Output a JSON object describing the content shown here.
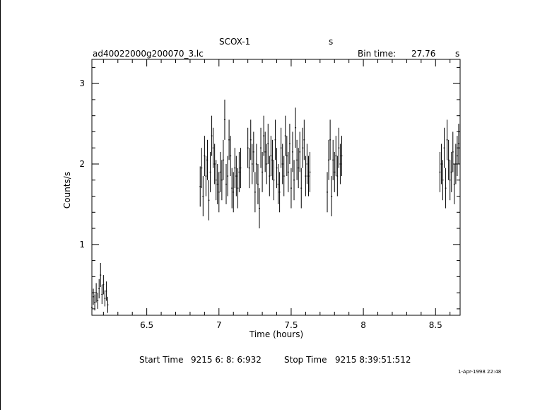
{
  "header": {
    "object": "SCOX-1",
    "unit_marker": "s",
    "file_name": "ad40022000g200070_3.lc",
    "bin_time_label": "Bin time:",
    "bin_time_value": "27.76",
    "bin_time_unit": "s"
  },
  "footer": {
    "start_label": "Start Time",
    "start_value": "9215  6: 8: 6:932",
    "stop_label": "Stop Time",
    "stop_value": "9215  8:39:51:512",
    "timestamp": "1-Apr-1998 22:48"
  },
  "chart_data": {
    "type": "scatter",
    "xlabel": "Time (hours)",
    "ylabel": "Counts/s",
    "xlim": [
      6.12,
      8.67
    ],
    "ylim": [
      0.12,
      3.3
    ],
    "x_ticks": [
      6.5,
      7,
      7.5,
      8,
      8.5
    ],
    "x_tick_labels": [
      "6.5",
      "7",
      "7.5",
      "8",
      "8.5"
    ],
    "y_ticks": [
      1,
      2,
      3
    ],
    "y_tick_labels": [
      "1",
      "2",
      "3"
    ],
    "grid": false,
    "error_bars": true,
    "series": [
      {
        "x": [
          6.12,
          6.13,
          6.14,
          6.15,
          6.16,
          6.17,
          6.18,
          6.19,
          6.2,
          6.21,
          6.22,
          6.23,
          6.87,
          6.88,
          6.89,
          6.9,
          6.91,
          6.92,
          6.93,
          6.94,
          6.95,
          6.96,
          6.97,
          6.98,
          6.99,
          7.0,
          7.01,
          7.02,
          7.03,
          7.04,
          7.05,
          7.06,
          7.07,
          7.08,
          7.09,
          7.1,
          7.11,
          7.12,
          7.13,
          7.14,
          7.15,
          7.2,
          7.21,
          7.22,
          7.23,
          7.24,
          7.25,
          7.26,
          7.27,
          7.28,
          7.29,
          7.3,
          7.31,
          7.32,
          7.33,
          7.34,
          7.35,
          7.36,
          7.37,
          7.38,
          7.39,
          7.4,
          7.41,
          7.42,
          7.43,
          7.44,
          7.45,
          7.46,
          7.47,
          7.48,
          7.49,
          7.5,
          7.51,
          7.52,
          7.53,
          7.54,
          7.55,
          7.56,
          7.57,
          7.58,
          7.59,
          7.6,
          7.61,
          7.62,
          7.63,
          7.75,
          7.76,
          7.77,
          7.78,
          7.79,
          7.8,
          7.81,
          7.82,
          7.83,
          7.84,
          7.85,
          8.53,
          8.54,
          8.55,
          8.56,
          8.57,
          8.58,
          8.59,
          8.6,
          8.61,
          8.62,
          8.63,
          8.64,
          8.65,
          8.66
        ],
        "y": [
          0.22,
          0.35,
          0.28,
          0.4,
          0.3,
          0.45,
          0.62,
          0.38,
          0.5,
          0.33,
          0.42,
          0.25,
          1.72,
          1.95,
          1.6,
          2.1,
          1.85,
          2.05,
          1.55,
          1.9,
          2.35,
          2.2,
          2.0,
          1.8,
          1.75,
          1.65,
          1.9,
          1.8,
          2.05,
          2.55,
          1.75,
          1.85,
          2.3,
          2.1,
          1.7,
          1.65,
          1.95,
          1.85,
          1.7,
          1.9,
          1.95,
          2.2,
          1.95,
          2.3,
          2.0,
          2.15,
          1.65,
          2.0,
          1.75,
          1.45,
          2.2,
          1.9,
          2.35,
          2.15,
          2.0,
          2.25,
          1.85,
          2.1,
          2.05,
          1.8,
          2.3,
          1.95,
          1.75,
          1.65,
          2.2,
          2.0,
          1.85,
          2.35,
          2.1,
          1.9,
          2.25,
          1.7,
          2.15,
          1.8,
          2.45,
          2.05,
          1.95,
          2.15,
          1.7,
          2.2,
          2.3,
          1.85,
          2.0,
          1.85,
          1.9,
          1.65,
          2.05,
          2.3,
          1.6,
          2.05,
          1.9,
          2.1,
          1.85,
          2.2,
          2.0,
          2.1,
          1.9,
          2.0,
          1.8,
          2.2,
          1.7,
          2.3,
          2.05,
          1.8,
          1.9,
          2.15,
          1.75,
          2.0,
          2.1,
          2.25
        ],
        "yerr": [
          0.1,
          0.1,
          0.1,
          0.12,
          0.1,
          0.12,
          0.15,
          0.12,
          0.12,
          0.1,
          0.12,
          0.1,
          0.25,
          0.25,
          0.25,
          0.25,
          0.25,
          0.25,
          0.25,
          0.25,
          0.25,
          0.25,
          0.25,
          0.25,
          0.25,
          0.25,
          0.25,
          0.25,
          0.25,
          0.25,
          0.25,
          0.25,
          0.25,
          0.25,
          0.25,
          0.25,
          0.25,
          0.25,
          0.25,
          0.25,
          0.25,
          0.25,
          0.25,
          0.25,
          0.25,
          0.25,
          0.25,
          0.25,
          0.25,
          0.25,
          0.25,
          0.25,
          0.25,
          0.25,
          0.25,
          0.25,
          0.25,
          0.25,
          0.25,
          0.25,
          0.25,
          0.25,
          0.25,
          0.25,
          0.25,
          0.25,
          0.25,
          0.25,
          0.25,
          0.25,
          0.25,
          0.25,
          0.25,
          0.25,
          0.25,
          0.25,
          0.25,
          0.25,
          0.25,
          0.25,
          0.25,
          0.25,
          0.25,
          0.25,
          0.25,
          0.25,
          0.25,
          0.25,
          0.25,
          0.25,
          0.25,
          0.25,
          0.25,
          0.25,
          0.25,
          0.25,
          0.25,
          0.25,
          0.25,
          0.25,
          0.25,
          0.25,
          0.25,
          0.25,
          0.25,
          0.25,
          0.25,
          0.25,
          0.25,
          0.25
        ]
      }
    ]
  }
}
